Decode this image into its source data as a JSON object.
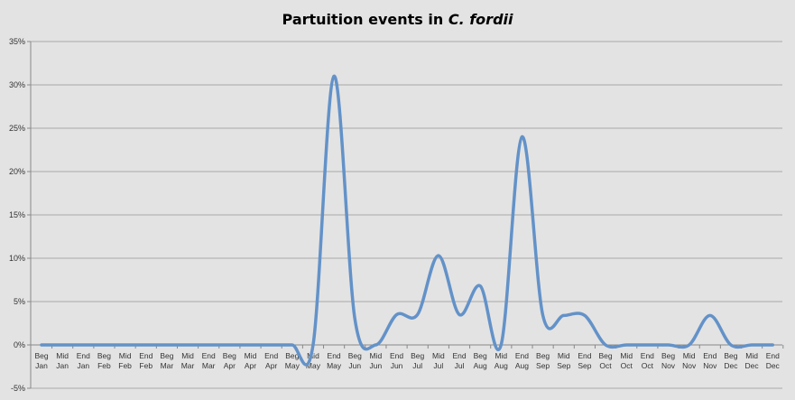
{
  "chart_data": {
    "type": "line",
    "title": "Partuition events in ",
    "title_italic": "C. fordii",
    "xlabel": "",
    "ylabel": "",
    "ylim": [
      -0.05,
      0.35
    ],
    "yticks": [
      -0.05,
      0,
      0.05,
      0.1,
      0.15,
      0.2,
      0.25,
      0.3,
      0.35
    ],
    "ytick_labels": [
      "-5%",
      "0%",
      "5%",
      "10%",
      "15%",
      "20%",
      "25%",
      "30%",
      "35%"
    ],
    "grid": "horizontal",
    "legend": "none",
    "categories": [
      [
        "Beg",
        "Jan"
      ],
      [
        "Mid",
        "Jan"
      ],
      [
        "End",
        "Jan"
      ],
      [
        "Beg",
        "Feb"
      ],
      [
        "Mid",
        "Feb"
      ],
      [
        "End",
        "Feb"
      ],
      [
        "Beg",
        "Mar"
      ],
      [
        "Mid",
        "Mar"
      ],
      [
        "End",
        "Mar"
      ],
      [
        "Beg",
        "Apr"
      ],
      [
        "Mid",
        "Apr"
      ],
      [
        "End",
        "Apr"
      ],
      [
        "Beg",
        "May"
      ],
      [
        "Mid",
        "May"
      ],
      [
        "End",
        "May"
      ],
      [
        "Beg",
        "Jun"
      ],
      [
        "Mid",
        "Jun"
      ],
      [
        "End",
        "Jun"
      ],
      [
        "Beg",
        "Jul"
      ],
      [
        "Mid",
        "Jul"
      ],
      [
        "End",
        "Jul"
      ],
      [
        "Beg",
        "Aug"
      ],
      [
        "Mid",
        "Aug"
      ],
      [
        "End",
        "Aug"
      ],
      [
        "Beg",
        "Sep"
      ],
      [
        "Mid",
        "Sep"
      ],
      [
        "End",
        "Sep"
      ],
      [
        "Beg",
        "Oct"
      ],
      [
        "Mid",
        "Oct"
      ],
      [
        "End",
        "Oct"
      ],
      [
        "Beg",
        "Nov"
      ],
      [
        "Mid",
        "Nov"
      ],
      [
        "End",
        "Nov"
      ],
      [
        "Beg",
        "Dec"
      ],
      [
        "Mid",
        "Dec"
      ],
      [
        "End",
        "Dec"
      ]
    ],
    "series": [
      {
        "color": "#6392c8",
        "values": [
          0,
          0,
          0,
          0,
          0,
          0,
          0,
          0,
          0,
          0,
          0,
          0,
          0,
          0,
          0.31,
          0.03,
          0,
          0.035,
          0.035,
          0.103,
          0.035,
          0.068,
          0,
          0.24,
          0.034,
          0.034,
          0.034,
          0,
          0,
          0,
          0,
          0,
          0.034,
          0,
          0,
          0
        ]
      }
    ]
  }
}
